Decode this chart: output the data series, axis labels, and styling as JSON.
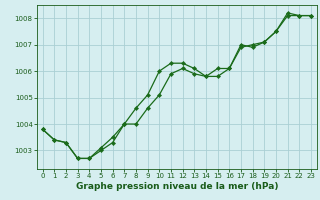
{
  "line1_x": [
    0,
    1,
    2,
    3,
    4,
    5,
    6,
    7,
    8,
    9,
    10,
    11,
    12,
    13,
    14,
    15,
    16,
    17,
    18,
    19,
    20,
    21,
    22,
    23
  ],
  "line1_y": [
    1003.8,
    1003.4,
    1003.3,
    1002.7,
    1002.7,
    1003.0,
    1003.3,
    1004.0,
    1004.6,
    1005.1,
    1006.0,
    1006.3,
    1006.3,
    1006.1,
    1005.8,
    1006.1,
    1006.1,
    1007.0,
    1006.9,
    1007.1,
    1007.5,
    1008.1,
    1008.1,
    1008.1
  ],
  "line2_x": [
    0,
    1,
    2,
    3,
    4,
    5,
    6,
    7,
    8,
    9,
    10,
    11,
    12,
    13,
    14,
    15,
    16,
    17,
    18,
    19,
    20,
    21,
    22,
    23
  ],
  "line2_y": [
    1003.8,
    1003.4,
    1003.3,
    1002.7,
    1002.7,
    1003.1,
    1003.5,
    1004.0,
    1004.0,
    1004.6,
    1005.1,
    1005.9,
    1006.1,
    1005.9,
    1005.8,
    1005.8,
    1006.1,
    1006.9,
    1007.0,
    1007.1,
    1007.5,
    1008.2,
    1008.1,
    1008.1
  ],
  "line_color": "#1a6b1a",
  "marker": "D",
  "marker_size": 2.2,
  "xlim": [
    -0.5,
    23.5
  ],
  "ylim": [
    1002.3,
    1008.5
  ],
  "yticks": [
    1003,
    1004,
    1005,
    1006,
    1007,
    1008
  ],
  "xticks": [
    0,
    1,
    2,
    3,
    4,
    5,
    6,
    7,
    8,
    9,
    10,
    11,
    12,
    13,
    14,
    15,
    16,
    17,
    18,
    19,
    20,
    21,
    22,
    23
  ],
  "xlabel": "Graphe pression niveau de la mer (hPa)",
  "bg_color": "#d6eef0",
  "grid_color": "#aacfd4",
  "label_color": "#1a5c1a",
  "tick_color": "#1a5c1a",
  "label_fontsize": 6.5,
  "tick_fontsize": 5.0,
  "lw": 0.9
}
